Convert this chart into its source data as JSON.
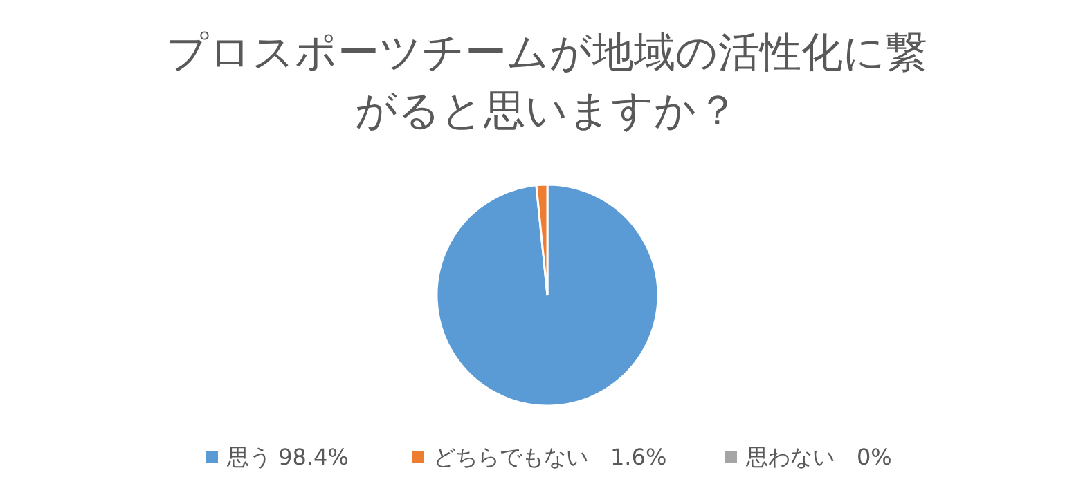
{
  "chart_data": {
    "type": "pie",
    "title": "プロスポーツチームが地域の活性化に繋がると思いますか？",
    "categories": [
      "思う 98.4%",
      "どちらでもない　1.6%",
      "思わない　0%"
    ],
    "values": [
      98.4,
      1.6,
      0
    ],
    "colors": [
      "#5b9bd5",
      "#ed7d31",
      "#a5a5a5"
    ],
    "legend": "bottom"
  }
}
